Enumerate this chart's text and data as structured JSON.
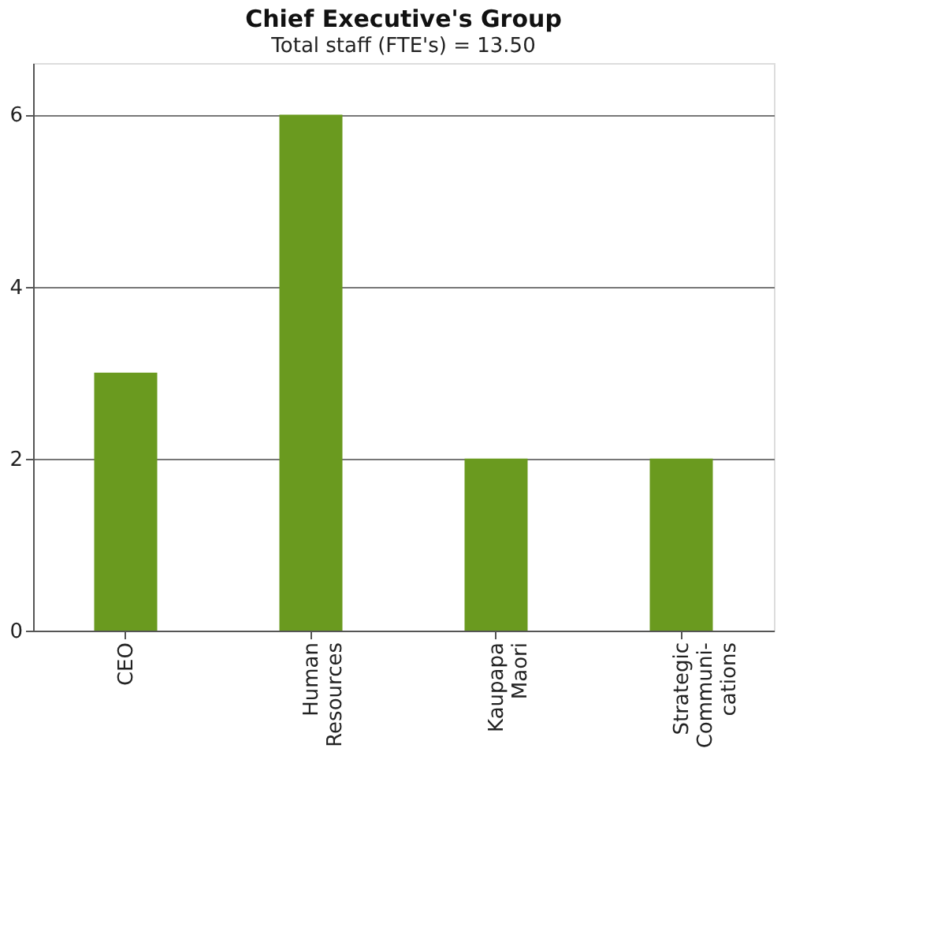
{
  "chart_data": {
    "type": "bar",
    "title": "Chief Executive's Group",
    "subtitle": "Total staff (FTE's) = 13.50",
    "categories": [
      "CEO",
      "Human\nResources",
      "Kaupapa\nMaori",
      "Strategic\nCommuni-\ncations"
    ],
    "values": [
      3,
      6,
      2,
      2
    ],
    "color": "#6a9a1f",
    "ylim": [
      0,
      6.6
    ],
    "yticks": [
      0,
      2,
      4,
      6
    ],
    "grid": "y"
  }
}
